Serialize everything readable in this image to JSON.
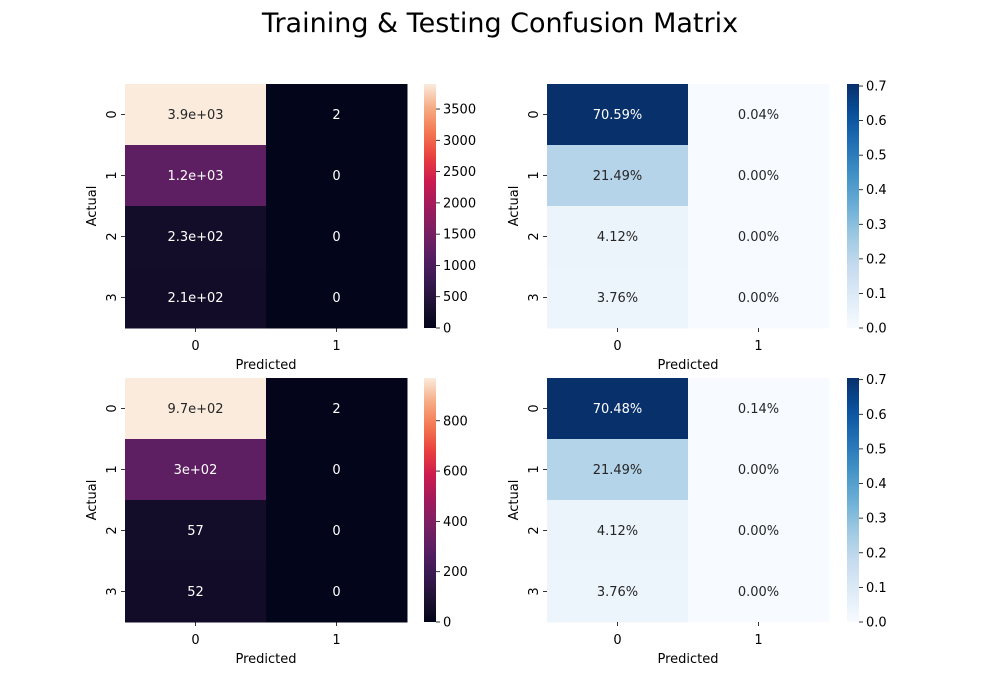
{
  "title": "Training & Testing Confusion Matrix",
  "chart_data": [
    {
      "type": "heatmap",
      "xlabel": "Predicted",
      "ylabel": "Actual",
      "x_categories": [
        "0",
        "1"
      ],
      "y_categories": [
        "0",
        "1",
        "2",
        "3"
      ],
      "values": [
        [
          3900,
          2
        ],
        [
          1200,
          0
        ],
        [
          230,
          0
        ],
        [
          210,
          0
        ]
      ],
      "annotations": [
        [
          "3.9e+03",
          "2"
        ],
        [
          "1.2e+03",
          "0"
        ],
        [
          "2.3e+02",
          "0"
        ],
        [
          "2.1e+02",
          "0"
        ]
      ],
      "colormap": "rocket",
      "colorbar": {
        "min": 0,
        "max": 3900,
        "ticks": [
          0,
          500,
          1000,
          1500,
          2000,
          2500,
          3000,
          3500
        ]
      }
    },
    {
      "type": "heatmap",
      "xlabel": "Predicted",
      "ylabel": "Actual",
      "x_categories": [
        "0",
        "1"
      ],
      "y_categories": [
        "0",
        "1",
        "2",
        "3"
      ],
      "values": [
        [
          0.7059,
          0.0004
        ],
        [
          0.2149,
          0.0
        ],
        [
          0.0412,
          0.0
        ],
        [
          0.0376,
          0.0
        ]
      ],
      "annotations": [
        [
          "70.59%",
          "0.04%"
        ],
        [
          "21.49%",
          "0.00%"
        ],
        [
          "4.12%",
          "0.00%"
        ],
        [
          "3.76%",
          "0.00%"
        ]
      ],
      "colormap": "Blues",
      "colorbar": {
        "min": 0,
        "max": 0.7059,
        "ticks": [
          0.0,
          0.1,
          0.2,
          0.3,
          0.4,
          0.5,
          0.6,
          0.7
        ]
      }
    },
    {
      "type": "heatmap",
      "xlabel": "Predicted",
      "ylabel": "Actual",
      "x_categories": [
        "0",
        "1"
      ],
      "y_categories": [
        "0",
        "1",
        "2",
        "3"
      ],
      "values": [
        [
          970,
          2
        ],
        [
          300,
          0
        ],
        [
          57,
          0
        ],
        [
          52,
          0
        ]
      ],
      "annotations": [
        [
          "9.7e+02",
          "2"
        ],
        [
          "3e+02",
          "0"
        ],
        [
          "57",
          "0"
        ],
        [
          "52",
          "0"
        ]
      ],
      "colormap": "rocket",
      "colorbar": {
        "min": 0,
        "max": 970,
        "ticks": [
          0,
          200,
          400,
          600,
          800
        ]
      }
    },
    {
      "type": "heatmap",
      "xlabel": "Predicted",
      "ylabel": "Actual",
      "x_categories": [
        "0",
        "1"
      ],
      "y_categories": [
        "0",
        "1",
        "2",
        "3"
      ],
      "values": [
        [
          0.7048,
          0.0014
        ],
        [
          0.2149,
          0.0
        ],
        [
          0.0412,
          0.0
        ],
        [
          0.0376,
          0.0
        ]
      ],
      "annotations": [
        [
          "70.48%",
          "0.14%"
        ],
        [
          "21.49%",
          "0.00%"
        ],
        [
          "4.12%",
          "0.00%"
        ],
        [
          "3.76%",
          "0.00%"
        ]
      ],
      "colormap": "Blues",
      "colorbar": {
        "min": 0,
        "max": 0.7048,
        "ticks": [
          0.0,
          0.1,
          0.2,
          0.3,
          0.4,
          0.5,
          0.6,
          0.7
        ]
      }
    }
  ]
}
